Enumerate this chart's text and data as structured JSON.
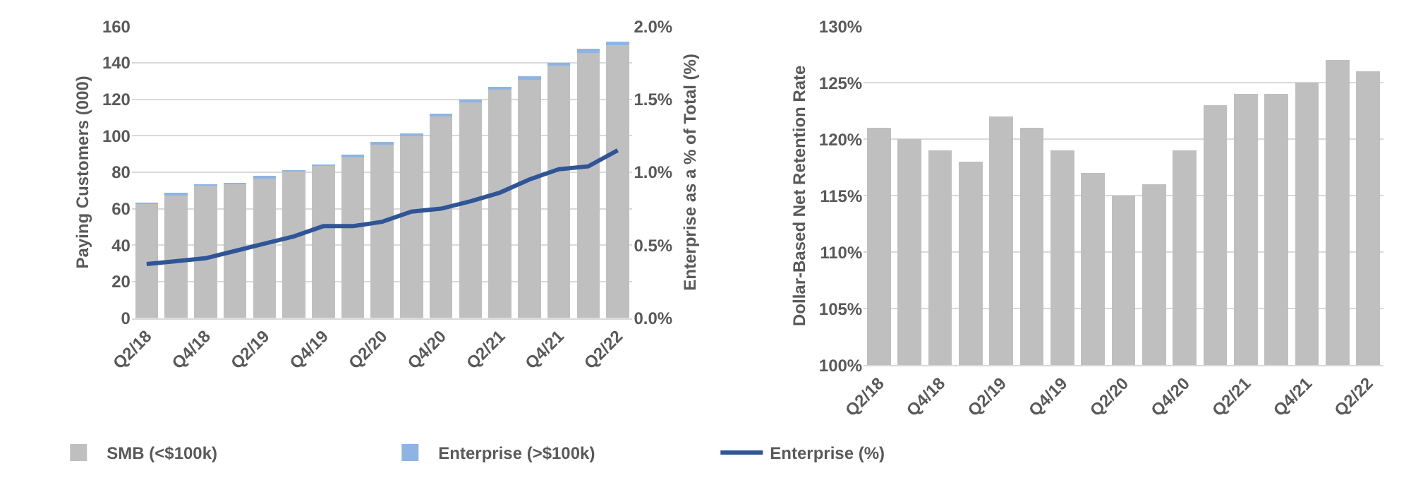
{
  "chart_data": [
    {
      "type": "bar",
      "stacked": true,
      "ylabel": "Paying Customers (000)",
      "y2label": "Enterprise as a % of Total (%)",
      "categories": [
        "Q2/18",
        null,
        "Q4/18",
        null,
        "Q2/19",
        null,
        "Q4/19",
        null,
        "Q2/20",
        null,
        "Q4/20",
        null,
        "Q2/21",
        null,
        "Q4/21",
        null,
        "Q2/22"
      ],
      "series": [
        {
          "name": "SMB (<$100k)",
          "color": "#bfbfbf",
          "values": [
            62.8,
            67.7,
            72.7,
            73.7,
            77.1,
            80.5,
            83.5,
            88.4,
            95.4,
            100.3,
            110.7,
            118.5,
            125.4,
            131.2,
            138.6,
            146,
            149.8
          ]
        },
        {
          "name": "Enterprise (>$100k)",
          "color": "#8eb4e3",
          "values": [
            0.2,
            0.3,
            0.3,
            0.3,
            0.4,
            0.5,
            0.5,
            0.6,
            0.6,
            0.7,
            0.8,
            1.0,
            1.1,
            1.3,
            1.4,
            1.5,
            1.7
          ]
        },
        {
          "name": "Enterprise (%)",
          "type": "line",
          "axis": "y2",
          "color": "#2f5597",
          "marker": "none",
          "values": [
            0.37,
            0.39,
            0.41,
            0.46,
            0.51,
            0.56,
            0.63,
            0.63,
            0.66,
            0.73,
            0.75,
            0.8,
            0.86,
            0.95,
            1.02,
            1.04,
            1.15
          ]
        }
      ],
      "ylim": [
        0,
        160
      ],
      "yticks": [
        0,
        20,
        40,
        60,
        80,
        100,
        120,
        140,
        160
      ],
      "y2lim": [
        0,
        2
      ],
      "y2ticks": [
        {
          "value": 0,
          "label": "0.0%"
        },
        {
          "value": 0.5,
          "label": "0.5%"
        },
        {
          "value": 1,
          "label": "1.0%"
        },
        {
          "value": 1.5,
          "label": "1.5%"
        },
        {
          "value": 2,
          "label": "2.0%"
        }
      ],
      "grid": "y",
      "legend": "bottom"
    },
    {
      "type": "bar",
      "ylabel": "Dollar-Based Net Retention Rate",
      "categories": [
        "Q2/18",
        null,
        "Q4/18",
        null,
        "Q2/19",
        null,
        "Q4/19",
        null,
        "Q2/20",
        null,
        "Q4/20",
        null,
        "Q2/21",
        null,
        "Q4/21",
        null,
        "Q2/22"
      ],
      "series": [
        {
          "color": "#bfbfbf",
          "values": [
            121,
            120,
            119,
            118,
            122,
            121,
            119,
            117,
            115,
            116,
            119,
            123,
            124,
            124,
            125,
            127,
            126
          ]
        }
      ],
      "ylim": [
        100,
        130
      ],
      "yticks": [
        {
          "value": 100,
          "label": "100%"
        },
        {
          "value": 105,
          "label": "105%"
        },
        {
          "value": 110,
          "label": "110%"
        },
        {
          "value": 115,
          "label": "115%"
        },
        {
          "value": 120,
          "label": "120%"
        },
        {
          "value": 125,
          "label": "125%"
        },
        {
          "value": 130,
          "label": "130%"
        }
      ],
      "grid": "y",
      "legend": false
    }
  ]
}
